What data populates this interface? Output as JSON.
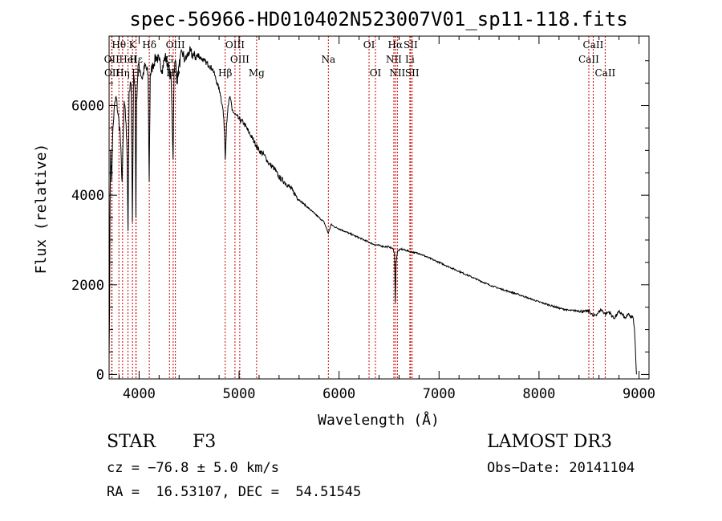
{
  "chart_data": {
    "type": "line",
    "title": "spec-56966-HD010402N523007V01_sp11-118.fits",
    "xlabel": "Wavelength (Å)",
    "ylabel": "Flux (relative)",
    "xlim": [
      3700,
      9100
    ],
    "ylim": [
      -100,
      7550
    ],
    "xticks": [
      4000,
      5000,
      6000,
      7000,
      8000,
      9000
    ],
    "yticks": [
      0,
      2000,
      4000,
      6000
    ],
    "grid": false,
    "series": [
      {
        "name": "spectrum",
        "x": [
          3700,
          3705,
          3710,
          3715,
          3725,
          3735,
          3750,
          3770,
          3790,
          3810,
          3830,
          3850,
          3870,
          3880,
          3889,
          3900,
          3920,
          3933,
          3945,
          3960,
          3968,
          3975,
          3990,
          4010,
          4030,
          4060,
          4090,
          4101,
          4112,
          4140,
          4170,
          4200,
          4230,
          4260,
          4290,
          4320,
          4340,
          4350,
          4365,
          4380,
          4400,
          4430,
          4460,
          4500,
          4550,
          4600,
          4650,
          4700,
          4740,
          4780,
          4810,
          4840,
          4855,
          4861,
          4867,
          4875,
          4890,
          4910,
          4930,
          4960,
          5000,
          5050,
          5100,
          5150,
          5200,
          5250,
          5300,
          5350,
          5400,
          5450,
          5500,
          5550,
          5600,
          5650,
          5700,
          5750,
          5800,
          5850,
          5893,
          5920,
          5950,
          6000,
          6050,
          6100,
          6150,
          6200,
          6250,
          6300,
          6350,
          6400,
          6450,
          6500,
          6540,
          6555,
          6563,
          6570,
          6585,
          6620,
          6650,
          6700,
          6750,
          6800,
          6850,
          6900,
          6950,
          7000,
          7100,
          7200,
          7300,
          7400,
          7500,
          7600,
          7700,
          7800,
          7900,
          8000,
          8100,
          8200,
          8300,
          8400,
          8450,
          8498,
          8542,
          8580,
          8620,
          8662,
          8700,
          8750,
          8800,
          8830,
          8860,
          8880,
          8900,
          8920,
          8935,
          8945,
          8955,
          8965,
          8975
        ],
        "values": [
          400,
          1500,
          3800,
          5000,
          4300,
          5300,
          5900,
          6200,
          5800,
          5400,
          4300,
          6100,
          5600,
          4900,
          3200,
          6300,
          6500,
          3400,
          6700,
          6400,
          3500,
          6100,
          6900,
          6800,
          6600,
          6900,
          6700,
          4300,
          6700,
          6900,
          7100,
          7000,
          6800,
          7100,
          6900,
          6600,
          4800,
          6800,
          7000,
          6500,
          6900,
          7200,
          7000,
          7200,
          7100,
          7100,
          7000,
          6900,
          6800,
          6500,
          6300,
          5900,
          5400,
          4800,
          5100,
          5600,
          6000,
          6200,
          5900,
          5800,
          5700,
          5600,
          5400,
          5200,
          5000,
          4900,
          4700,
          4600,
          4400,
          4300,
          4200,
          4050,
          3900,
          3800,
          3700,
          3600,
          3500,
          3400,
          3150,
          3350,
          3300,
          3250,
          3200,
          3150,
          3100,
          3050,
          3000,
          2950,
          2900,
          2880,
          2850,
          2850,
          2800,
          2700,
          1600,
          2500,
          2750,
          2800,
          2780,
          2750,
          2720,
          2700,
          2650,
          2600,
          2550,
          2500,
          2400,
          2300,
          2200,
          2100,
          2000,
          1920,
          1850,
          1780,
          1700,
          1620,
          1550,
          1480,
          1430,
          1420,
          1400,
          1420,
          1300,
          1350,
          1450,
          1350,
          1400,
          1250,
          1400,
          1350,
          1250,
          1300,
          1350,
          1250,
          1300,
          1200,
          1000,
          500,
          0
        ]
      }
    ],
    "lines": [
      {
        "x": 3726,
        "label": "OII",
        "row": 1
      },
      {
        "x": 3729,
        "label": "OII",
        "row": 2
      },
      {
        "x": 3798,
        "label": "Hθ",
        "row": 0
      },
      {
        "x": 3835,
        "label": "Hη",
        "row": 2
      },
      {
        "x": 3889,
        "label": "HeI",
        "row": 1
      },
      {
        "x": 3934,
        "label": "K",
        "row": 0
      },
      {
        "x": 3968,
        "label": "H",
        "row": 2
      },
      {
        "x": 3970,
        "label": "Hε",
        "row": 1
      },
      {
        "x": 4102,
        "label": "Hδ",
        "row": 0
      },
      {
        "x": 4304,
        "label": "G",
        "row": 1
      },
      {
        "x": 4341,
        "label": "Hγ",
        "row": 2
      },
      {
        "x": 4363,
        "label": "OIII",
        "row": 0
      },
      {
        "x": 4861,
        "label": "Hβ",
        "row": 2
      },
      {
        "x": 4959,
        "label": "OIII",
        "row": 0
      },
      {
        "x": 5007,
        "label": "OIII",
        "row": 1
      },
      {
        "x": 5175,
        "label": "Mg",
        "row": 2
      },
      {
        "x": 5893,
        "label": "Na",
        "row": 1
      },
      {
        "x": 6300,
        "label": "OI",
        "row": 0
      },
      {
        "x": 6364,
        "label": "OI",
        "row": 2
      },
      {
        "x": 6548,
        "label": "NII",
        "row": 1
      },
      {
        "x": 6563,
        "label": "Hα",
        "row": 0
      },
      {
        "x": 6583,
        "label": "NII",
        "row": 2
      },
      {
        "x": 6708,
        "label": "Li",
        "row": 1
      },
      {
        "x": 6716,
        "label": "SII",
        "row": 0
      },
      {
        "x": 6731,
        "label": "SII",
        "row": 2
      },
      {
        "x": 8498,
        "label": "CaII",
        "row": 1
      },
      {
        "x": 8542,
        "label": "CaII",
        "row": 0
      },
      {
        "x": 8662,
        "label": "CaII",
        "row": 2
      }
    ]
  },
  "info": {
    "object_type": "STAR",
    "subclass": "F3",
    "survey": "LAMOST DR3",
    "cz": "cz = −76.8 ± 5.0 km/s",
    "obs_date": "Obs−Date: 20141104",
    "coords": "RA =  16.53107, DEC =  54.51545"
  },
  "colors": {
    "line_marker": "#cc0000",
    "spectrum": "#000000"
  }
}
